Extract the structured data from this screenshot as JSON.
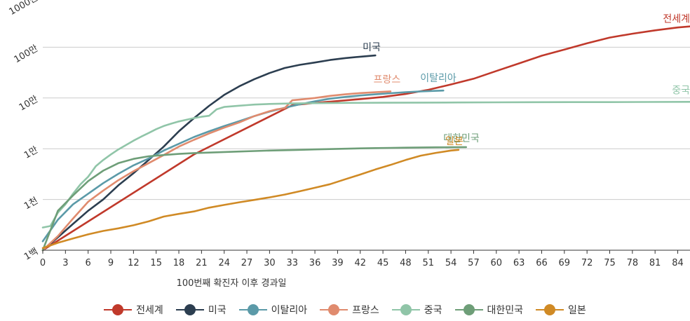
{
  "chart_data": {
    "type": "line",
    "xlabel": "100번째 확진자 이후 경과일",
    "y_scale": "log",
    "ylim": [
      100,
      10000000
    ],
    "xlim": [
      0,
      86
    ],
    "x_ticks": [
      0,
      3,
      6,
      9,
      12,
      15,
      18,
      21,
      24,
      27,
      30,
      33,
      36,
      39,
      42,
      45,
      48,
      51,
      54,
      57,
      60,
      63,
      66,
      69,
      72,
      75,
      78,
      81,
      84
    ],
    "y_ticks": [
      {
        "value": 100,
        "label": "1백"
      },
      {
        "value": 1000,
        "label": "1천"
      },
      {
        "value": 10000,
        "label": "1만"
      },
      {
        "value": 100000,
        "label": "10만"
      },
      {
        "value": 1000000,
        "label": "100만"
      },
      {
        "value": 10000000,
        "label": "1000만"
      }
    ],
    "series": [
      {
        "name": "전세계",
        "color": "#c0392b",
        "label": "전세계",
        "x": [
          0,
          20,
          33,
          36,
          39,
          42,
          45,
          48,
          51,
          54,
          57,
          60,
          63,
          66,
          69,
          72,
          75,
          78,
          81,
          84,
          86
        ],
        "y": [
          100,
          7700,
          72000,
          80000,
          87000,
          95000,
          105000,
          120000,
          145000,
          185000,
          240000,
          340000,
          480000,
          680000,
          900000,
          1200000,
          1550000,
          1850000,
          2150000,
          2450000,
          2600000
        ]
      },
      {
        "name": "미국",
        "color": "#2c3e50",
        "label": "미국",
        "x": [
          0,
          2,
          4,
          6,
          8,
          10,
          12,
          14,
          16,
          18,
          20,
          22,
          24,
          26,
          28,
          30,
          32,
          34,
          36,
          38,
          40,
          42,
          44
        ],
        "y": [
          100,
          180,
          330,
          600,
          1000,
          1900,
          3300,
          6000,
          11000,
          22000,
          40000,
          70000,
          115000,
          170000,
          235000,
          310000,
          390000,
          450000,
          500000,
          560000,
          610000,
          650000,
          690000
        ]
      },
      {
        "name": "이탈리아",
        "color": "#5b9aa8",
        "label": "이탈리아",
        "x": [
          0,
          2,
          4,
          6,
          8,
          10,
          12,
          14,
          16,
          18,
          20,
          22,
          24,
          26,
          28,
          30,
          32,
          34,
          36,
          38,
          40,
          42,
          44,
          46,
          48,
          50,
          53
        ],
        "y": [
          150,
          400,
          800,
          1300,
          2100,
          3200,
          4700,
          6400,
          9200,
          12500,
          17000,
          22000,
          28000,
          35000,
          44000,
          54000,
          64000,
          75000,
          86000,
          97000,
          105000,
          112000,
          118000,
          124000,
          130000,
          135000,
          140000
        ]
      },
      {
        "name": "프랑스",
        "color": "#e08b6e",
        "label": "프랑스",
        "x": [
          0,
          2,
          4,
          6,
          8,
          10,
          12,
          14,
          16,
          18,
          20,
          22,
          24,
          26,
          28,
          30,
          31,
          32,
          33,
          34,
          36,
          38,
          40,
          42,
          44,
          46
        ],
        "y": [
          100,
          190,
          420,
          900,
          1500,
          2400,
          3600,
          5200,
          7500,
          11000,
          15000,
          20000,
          26000,
          33000,
          44000,
          55000,
          60000,
          63000,
          90000,
          93000,
          100000,
          110000,
          118000,
          125000,
          130000,
          135000
        ]
      },
      {
        "name": "중국",
        "color": "#90c5a8",
        "label": "중국",
        "x": [
          0,
          1,
          2,
          3,
          4,
          5,
          6,
          7,
          8,
          9,
          10,
          11,
          12,
          13,
          14,
          15,
          16,
          17,
          18,
          19,
          20,
          21,
          22,
          23,
          24,
          25,
          26,
          27,
          28,
          30,
          33,
          36,
          40,
          45,
          50,
          55,
          60,
          65,
          70,
          75,
          80,
          86
        ],
        "y": [
          280,
          300,
          550,
          800,
          1300,
          2000,
          2800,
          4500,
          6000,
          7700,
          9700,
          11800,
          14400,
          17200,
          20400,
          24300,
          28000,
          31200,
          34500,
          37200,
          40200,
          42600,
          44600,
          59800,
          66500,
          68500,
          70500,
          72400,
          74100,
          76300,
          78000,
          79000,
          80000,
          80500,
          81000,
          81500,
          82000,
          82500,
          82800,
          83000,
          83500,
          84000
        ]
      },
      {
        "name": "대한민국",
        "color": "#6e9e78",
        "label": "대한민국",
        "x": [
          0,
          2,
          4,
          6,
          8,
          10,
          12,
          14,
          16,
          18,
          20,
          22,
          24,
          26,
          28,
          30,
          32,
          34,
          36,
          38,
          40,
          42,
          44,
          46,
          48,
          50,
          52,
          54,
          56
        ],
        "y": [
          100,
          600,
          1200,
          2300,
          3700,
          5200,
          6300,
          7100,
          7500,
          7900,
          8200,
          8400,
          8600,
          8800,
          9000,
          9200,
          9350,
          9500,
          9700,
          9850,
          10000,
          10150,
          10300,
          10400,
          10500,
          10600,
          10650,
          10700,
          10750
        ]
      },
      {
        "name": "일본",
        "color": "#d08a25",
        "label": "일본",
        "x": [
          0,
          2,
          4,
          6,
          8,
          10,
          12,
          14,
          16,
          18,
          20,
          22,
          24,
          26,
          28,
          30,
          32,
          34,
          36,
          38,
          40,
          42,
          44,
          46,
          48,
          50,
          52,
          54,
          55
        ],
        "y": [
          110,
          140,
          170,
          205,
          240,
          270,
          310,
          370,
          460,
          520,
          580,
          690,
          780,
          880,
          980,
          1100,
          1250,
          1450,
          1700,
          2000,
          2500,
          3100,
          3900,
          4800,
          6000,
          7300,
          8300,
          9200,
          9500
        ]
      }
    ]
  },
  "legend": {
    "items": [
      {
        "label": "전세계",
        "color": "#c0392b"
      },
      {
        "label": "미국",
        "color": "#2c3e50"
      },
      {
        "label": "이탈리아",
        "color": "#5b9aa8"
      },
      {
        "label": "프랑스",
        "color": "#e08b6e"
      },
      {
        "label": "중국",
        "color": "#90c5a8"
      },
      {
        "label": "대한민국",
        "color": "#6e9e78"
      },
      {
        "label": "일본",
        "color": "#d08a25"
      }
    ]
  }
}
